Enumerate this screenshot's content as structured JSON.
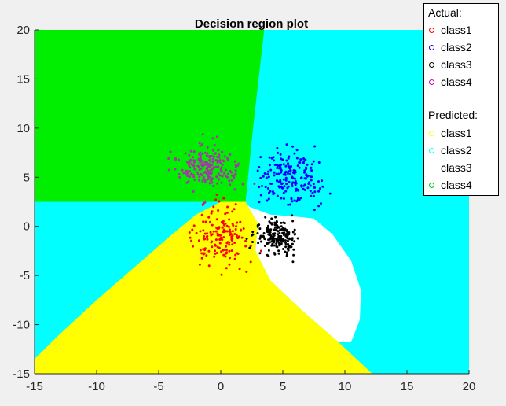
{
  "chart_data": {
    "type": "scatter",
    "title": "Decision region plot",
    "xlabel": "",
    "ylabel": "",
    "xlim": [
      -15,
      20
    ],
    "ylim": [
      -15,
      20
    ],
    "x_ticks": [
      -15,
      -10,
      -5,
      0,
      5,
      10,
      15,
      20
    ],
    "y_ticks": [
      -15,
      -10,
      -5,
      0,
      5,
      10,
      15,
      20
    ],
    "grid": false,
    "legend_position": "top-right",
    "regions": [
      {
        "name": "class1",
        "color": "#ffff00"
      },
      {
        "name": "class2",
        "color": "#00ffff"
      },
      {
        "name": "class3",
        "color": "#ffffff"
      },
      {
        "name": "class4",
        "color": "#00ee00"
      }
    ],
    "series": [
      {
        "name": "class1",
        "color": "#ff0000",
        "center": [
          0,
          -1
        ],
        "spread": [
          2,
          2.6
        ],
        "count": 160
      },
      {
        "name": "class2",
        "color": "#0000ff",
        "center": [
          5.5,
          5
        ],
        "spread": [
          2.2,
          2.2
        ],
        "count": 200
      },
      {
        "name": "class3",
        "color": "#000000",
        "center": [
          4.5,
          -1
        ],
        "spread": [
          1.5,
          1.4
        ],
        "count": 190
      },
      {
        "name": "class4",
        "color": "#aa33aa",
        "center": [
          -1,
          6
        ],
        "spread": [
          2,
          2
        ],
        "count": 200
      }
    ],
    "legend": {
      "actual_title": "Actual:",
      "predicted_title": "Predicted:",
      "actual": [
        {
          "label": "class1",
          "color": "#ff0000"
        },
        {
          "label": "class2",
          "color": "#0000ff"
        },
        {
          "label": "class3",
          "color": "#000000"
        },
        {
          "label": "class4",
          "color": "#cc00cc"
        }
      ],
      "predicted": [
        {
          "label": "class1",
          "color": "#ffff00"
        },
        {
          "label": "class2",
          "color": "#00ffff"
        },
        {
          "label": "class3",
          "color": "#ffffff"
        },
        {
          "label": "class4",
          "color": "#00cc00"
        }
      ]
    }
  }
}
